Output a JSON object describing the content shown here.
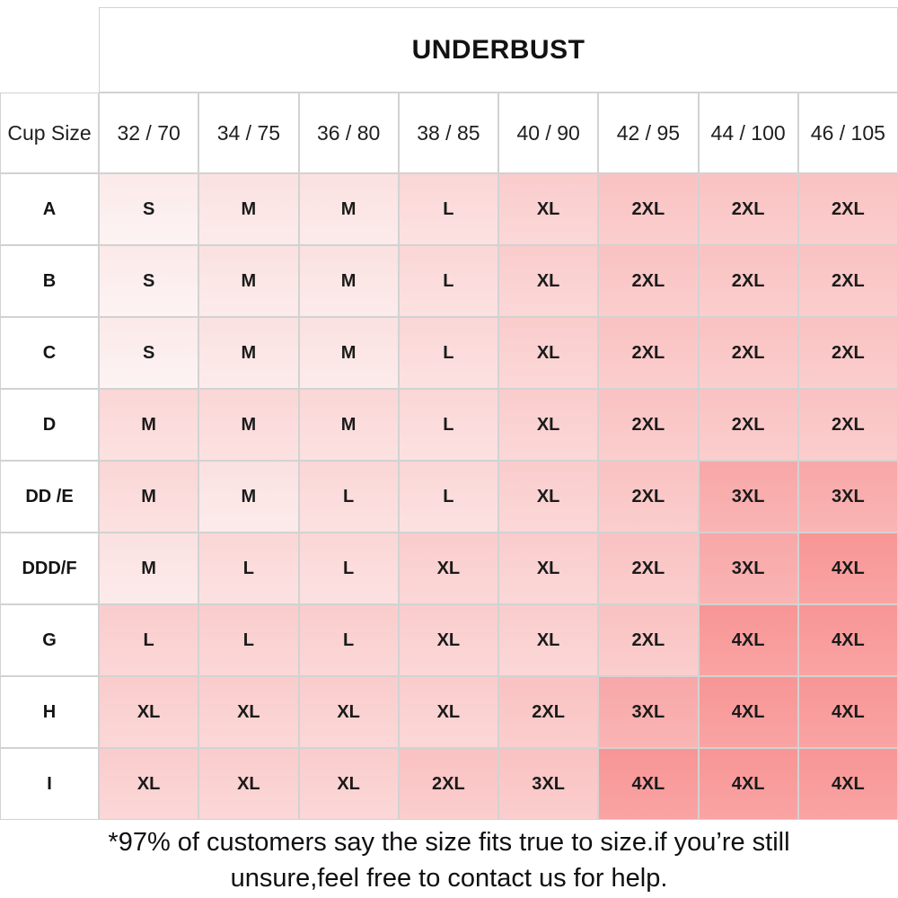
{
  "chart_data": {
    "type": "table",
    "title": "UNDERBUST",
    "corner_label": "Cup Size",
    "columns": [
      "32 / 70",
      "34 / 75",
      "36 / 80",
      "38 / 85",
      "40 / 90",
      "42 / 95",
      "44 / 100",
      "46 / 105"
    ],
    "rows": [
      {
        "label": "A",
        "cells": [
          {
            "v": "S",
            "s": 0
          },
          {
            "v": "M",
            "s": 1
          },
          {
            "v": "M",
            "s": 1
          },
          {
            "v": "L",
            "s": 2
          },
          {
            "v": "XL",
            "s": 3
          },
          {
            "v": "2XL",
            "s": 4
          },
          {
            "v": "2XL",
            "s": 4
          },
          {
            "v": "2XL",
            "s": 4
          }
        ]
      },
      {
        "label": "B",
        "cells": [
          {
            "v": "S",
            "s": 0
          },
          {
            "v": "M",
            "s": 1
          },
          {
            "v": "M",
            "s": 1
          },
          {
            "v": "L",
            "s": 2
          },
          {
            "v": "XL",
            "s": 3
          },
          {
            "v": "2XL",
            "s": 4
          },
          {
            "v": "2XL",
            "s": 4
          },
          {
            "v": "2XL",
            "s": 4
          }
        ]
      },
      {
        "label": "C",
        "cells": [
          {
            "v": "S",
            "s": 0
          },
          {
            "v": "M",
            "s": 1
          },
          {
            "v": "M",
            "s": 1
          },
          {
            "v": "L",
            "s": 2
          },
          {
            "v": "XL",
            "s": 3
          },
          {
            "v": "2XL",
            "s": 4
          },
          {
            "v": "2XL",
            "s": 4
          },
          {
            "v": "2XL",
            "s": 4
          }
        ]
      },
      {
        "label": "D",
        "cells": [
          {
            "v": "M",
            "s": 2
          },
          {
            "v": "M",
            "s": 2
          },
          {
            "v": "M",
            "s": 2
          },
          {
            "v": "L",
            "s": 2
          },
          {
            "v": "XL",
            "s": 3
          },
          {
            "v": "2XL",
            "s": 4
          },
          {
            "v": "2XL",
            "s": 4
          },
          {
            "v": "2XL",
            "s": 4
          }
        ]
      },
      {
        "label": "DD /E",
        "cells": [
          {
            "v": "M",
            "s": 2
          },
          {
            "v": "M",
            "s": 1
          },
          {
            "v": "L",
            "s": 2
          },
          {
            "v": "L",
            "s": 2
          },
          {
            "v": "XL",
            "s": 3
          },
          {
            "v": "2XL",
            "s": 4
          },
          {
            "v": "3XL",
            "s": 5
          },
          {
            "v": "3XL",
            "s": 5
          }
        ]
      },
      {
        "label": "DDD/F",
        "cells": [
          {
            "v": "M",
            "s": 1
          },
          {
            "v": "L",
            "s": 2
          },
          {
            "v": "L",
            "s": 2
          },
          {
            "v": "XL",
            "s": 3
          },
          {
            "v": "XL",
            "s": 3
          },
          {
            "v": "2XL",
            "s": 4
          },
          {
            "v": "3XL",
            "s": 5
          },
          {
            "v": "4XL",
            "s": 6
          }
        ]
      },
      {
        "label": "G",
        "cells": [
          {
            "v": "L",
            "s": 3
          },
          {
            "v": "L",
            "s": 3
          },
          {
            "v": "L",
            "s": 3
          },
          {
            "v": "XL",
            "s": 3
          },
          {
            "v": "XL",
            "s": 3
          },
          {
            "v": "2XL",
            "s": 4
          },
          {
            "v": "4XL",
            "s": 6
          },
          {
            "v": "4XL",
            "s": 6
          }
        ]
      },
      {
        "label": "H",
        "cells": [
          {
            "v": "XL",
            "s": 3
          },
          {
            "v": "XL",
            "s": 3
          },
          {
            "v": "XL",
            "s": 3
          },
          {
            "v": "XL",
            "s": 3
          },
          {
            "v": "2XL",
            "s": 4
          },
          {
            "v": "3XL",
            "s": 5
          },
          {
            "v": "4XL",
            "s": 6
          },
          {
            "v": "4XL",
            "s": 6
          }
        ]
      },
      {
        "label": "I",
        "cells": [
          {
            "v": "XL",
            "s": 3
          },
          {
            "v": "XL",
            "s": 3
          },
          {
            "v": "XL",
            "s": 3
          },
          {
            "v": "2XL",
            "s": 4
          },
          {
            "v": "3XL",
            "s": 4
          },
          {
            "v": "4XL",
            "s": 6
          },
          {
            "v": "4XL",
            "s": 6
          },
          {
            "v": "4XL",
            "s": 6
          }
        ]
      }
    ],
    "shade_palette": [
      "#fdf2f2",
      "#fce9e9",
      "#fcdede",
      "#fbd3d3",
      "#fbc8c8",
      "#f9acac",
      "#f99999"
    ],
    "layout": {
      "grid": "on",
      "header_row": "top",
      "row_labels": "left"
    }
  },
  "footer": {
    "line1": "*97% of customers say the size fits true to size.if you’re still",
    "line2": "unsure,feel free to contact us for help."
  },
  "colors": {
    "border": "#d2d2d2",
    "text": "#1a1a1a",
    "background": "#ffffff"
  }
}
